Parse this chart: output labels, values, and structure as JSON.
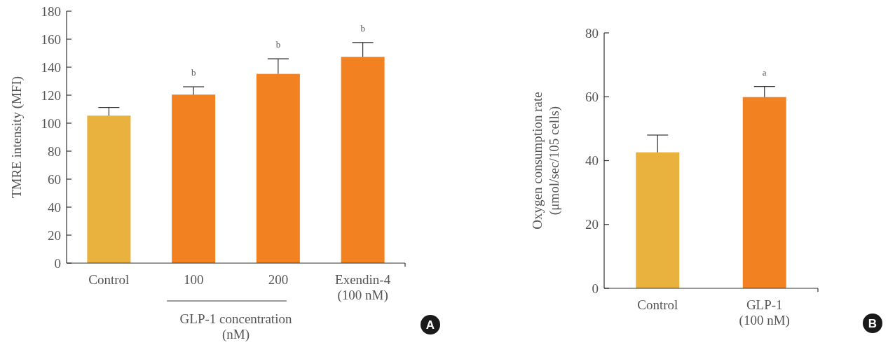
{
  "chart_data": [
    {
      "type": "bar",
      "ylabel": "TMRE intensity (MFI)",
      "xlabel": "GLP-1 concentration (nM)",
      "categories": [
        "Control",
        "100",
        "200",
        "Exendin-4 (100 nM)"
      ],
      "values": [
        105.4,
        120.4,
        135.2,
        147.4
      ],
      "colors": [
        "#e9b23f",
        "#f28221",
        "#f28221",
        "#f28221"
      ],
      "errors": [
        [
          105.4,
          111.2
        ],
        [
          120.4,
          126
        ],
        [
          135.2,
          146
        ],
        [
          147.4,
          157.6
        ]
      ],
      "ylim": [
        0,
        180
      ],
      "yticks": [
        0,
        20,
        40,
        60,
        80,
        100,
        120,
        140,
        160,
        180
      ],
      "grid": false,
      "annotations": [
        {
          "text": "b",
          "x": "100",
          "y": 126
        },
        {
          "text": "b",
          "x": "200",
          "y": 146
        },
        {
          "text": "b",
          "x": "Exendin-4 (100 nM)",
          "y": 157.6
        },
        "A"
      ]
    },
    {
      "type": "bar",
      "ylabel": "Oxygen consumption rate (μmol/sec/105 cells)",
      "categories": [
        "Control",
        "GLP-1 (100 nM)"
      ],
      "values": [
        42.6,
        59.9
      ],
      "colors": [
        "#e9b23f",
        "#f28221"
      ],
      "errors": [
        [
          42.6,
          48
        ],
        [
          59.9,
          63.2
        ]
      ],
      "ylim": [
        0,
        80
      ],
      "yticks": [
        0,
        20,
        40,
        60,
        80
      ],
      "grid": false,
      "annotations": [
        {
          "text": "a",
          "x": "GLP-1 (100 nM)",
          "y": 63.2
        },
        "B"
      ]
    }
  ]
}
